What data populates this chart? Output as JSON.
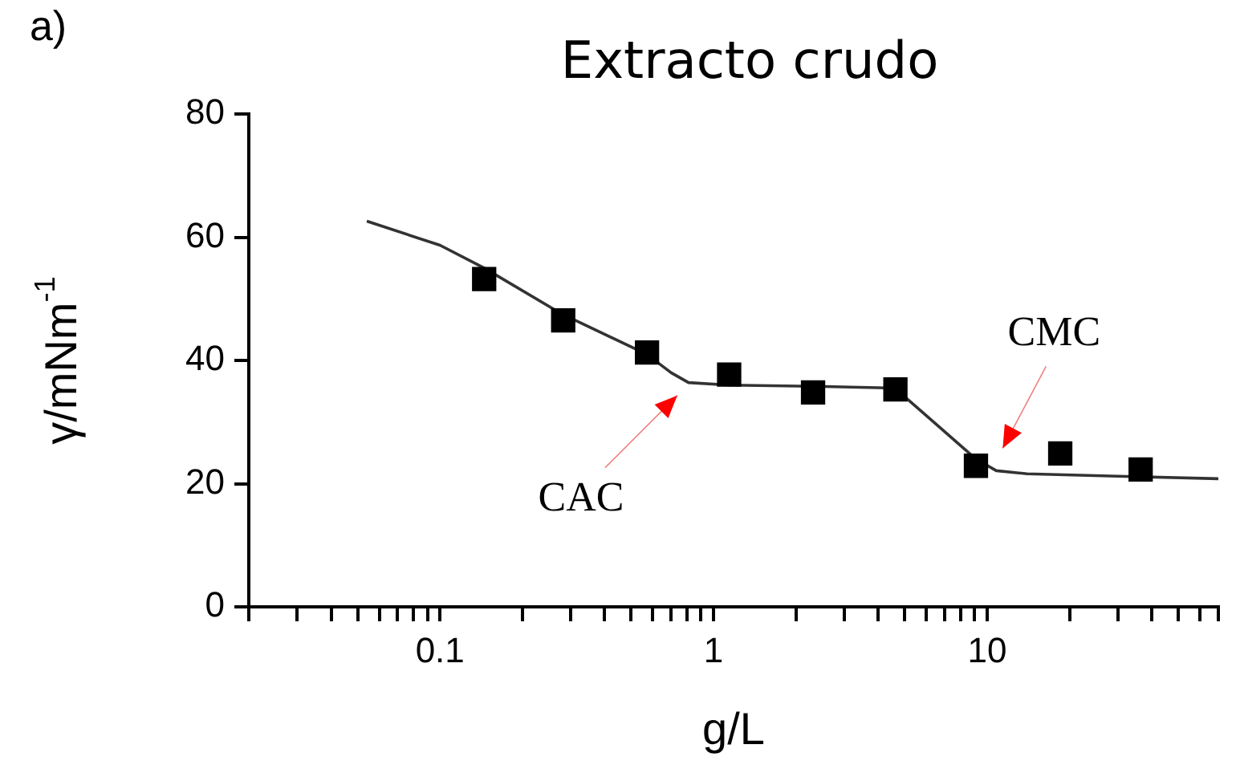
{
  "chart_data": {
    "type": "scatter",
    "title": "Extracto crudo",
    "xlabel": "g/L",
    "ylabel": "γ/mNm$^{-1}$",
    "log": "x",
    "xlim": [
      0.02,
      70
    ],
    "ylim": [
      0,
      80
    ],
    "yticks": [
      0,
      20,
      40,
      60,
      80
    ],
    "xticks": [
      {
        "value": 0.02,
        "label": null
      },
      {
        "value": 0.03,
        "label": null
      },
      {
        "value": 0.04,
        "label": null
      },
      {
        "value": 0.05,
        "label": null
      },
      {
        "value": 0.06,
        "label": null
      },
      {
        "value": 0.07,
        "label": null
      },
      {
        "value": 0.08,
        "label": null
      },
      {
        "value": 0.09,
        "label": null
      },
      0.1,
      {
        "value": 0.2,
        "label": null
      },
      {
        "value": 0.3,
        "label": null
      },
      {
        "value": 0.4,
        "label": null
      },
      {
        "value": 0.5,
        "label": null
      },
      {
        "value": 0.6,
        "label": null
      },
      {
        "value": 0.7,
        "label": null
      },
      {
        "value": 0.8,
        "label": null
      },
      {
        "value": 0.9,
        "label": null
      },
      1,
      {
        "value": 2,
        "label": null
      },
      {
        "value": 3,
        "label": null
      },
      {
        "value": 4,
        "label": null
      },
      {
        "value": 5,
        "label": null
      },
      {
        "value": 6,
        "label": null
      },
      {
        "value": 7,
        "label": null
      },
      {
        "value": 8,
        "label": null
      },
      {
        "value": 9,
        "label": null
      },
      10,
      {
        "value": 20,
        "label": null
      },
      {
        "value": 30,
        "label": null
      },
      {
        "value": 40,
        "label": null
      },
      {
        "value": 50,
        "label": null
      },
      {
        "value": 60,
        "label": null
      },
      {
        "value": 70,
        "label": null
      }
    ],
    "grid": false,
    "legend": false,
    "series": [
      {
        "type": "scatter",
        "marker": "square",
        "color": "#000000",
        "x": [
          0.145,
          0.282,
          0.571,
          1.14,
          2.31,
          4.62,
          9.1,
          18.5,
          36.4
        ],
        "values": [
          53.2,
          46.5,
          41.3,
          37.7,
          34.8,
          35.3,
          22.9,
          24.9,
          22.3
        ]
      },
      {
        "type": "line",
        "marker": "none",
        "color": "#333333",
        "x": [
          0.054,
          0.1,
          0.145,
          0.28,
          0.57,
          0.7,
          0.81,
          1.14,
          2.3,
          4.6,
          9.1,
          10.8,
          14,
          30,
          70
        ],
        "values": [
          62.6,
          58.7,
          55,
          47.5,
          41,
          38,
          36.4,
          36,
          35.8,
          35.5,
          24,
          22.1,
          21.6,
          21.2,
          20.8
        ]
      }
    ],
    "annotations": [
      "a)",
      {
        "text": "CAC",
        "x": 0.81,
        "y": 36.4
      },
      {
        "text": "CMC",
        "x": 10.8,
        "y": 22.1
      }
    ]
  }
}
